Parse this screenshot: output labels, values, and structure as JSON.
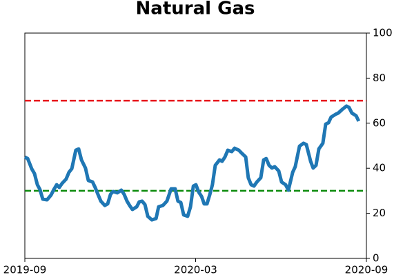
{
  "chart_data": {
    "type": "line",
    "title": "Natural Gas",
    "x": [
      0,
      0.1,
      0.24,
      0.34,
      0.44,
      0.53,
      0.63,
      0.78,
      0.92,
      1.02,
      1.12,
      1.21,
      1.31,
      1.45,
      1.55,
      1.65,
      1.79,
      1.89,
      1.99,
      2.13,
      2.23,
      2.38,
      2.47,
      2.57,
      2.67,
      2.81,
      2.91,
      3.01,
      3.1,
      3.25,
      3.39,
      3.49,
      3.59,
      3.68,
      3.78,
      3.93,
      4.02,
      4.12,
      4.22,
      4.32,
      4.46,
      4.61,
      4.7,
      4.85,
      4.99,
      5.14,
      5.28,
      5.38,
      5.48,
      5.58,
      5.72,
      5.82,
      5.92,
      6.01,
      6.11,
      6.21,
      6.3,
      6.4,
      6.5,
      6.59,
      6.69,
      6.84,
      6.93,
      7.03,
      7.13,
      7.27,
      7.37,
      7.52,
      7.61,
      7.76,
      7.85,
      7.95,
      8.05,
      8.15,
      8.29,
      8.39,
      8.48,
      8.58,
      8.68,
      8.78,
      8.92,
      9.02,
      9.16,
      9.26,
      9.41,
      9.5,
      9.65,
      9.79,
      9.89,
      10.04,
      10.13,
      10.23,
      10.33,
      10.47,
      10.57,
      10.67,
      10.76,
      10.91,
      11.01,
      11.15,
      11.3,
      11.39,
      11.49,
      11.64,
      11.73
    ],
    "series": [
      {
        "color": "#1f77b4",
        "values": [
          45.0,
          44.3,
          39.8,
          37.6,
          32.7,
          30.6,
          26.3,
          26.0,
          28.1,
          30.6,
          32.7,
          31.5,
          33.3,
          35.2,
          38.2,
          39.8,
          48.0,
          48.6,
          43.7,
          40.1,
          34.6,
          33.9,
          31.5,
          28.4,
          25.4,
          23.5,
          24.2,
          28.4,
          29.7,
          29.1,
          30.3,
          28.4,
          25.4,
          23.5,
          21.7,
          22.9,
          25.1,
          25.4,
          23.9,
          18.7,
          17.1,
          17.7,
          22.9,
          23.5,
          25.4,
          30.9,
          30.9,
          25.4,
          24.8,
          19.3,
          18.7,
          22.9,
          32.1,
          32.7,
          29.4,
          27.5,
          24.2,
          24.2,
          28.4,
          32.7,
          41.3,
          43.7,
          43.1,
          45.0,
          48.0,
          47.4,
          48.9,
          48.0,
          46.8,
          45.0,
          35.8,
          32.7,
          32.1,
          33.9,
          35.8,
          43.7,
          44.3,
          41.3,
          40.1,
          40.7,
          38.8,
          33.9,
          32.7,
          30.3,
          38.2,
          40.7,
          49.8,
          51.1,
          50.5,
          43.1,
          40.1,
          41.3,
          48.6,
          51.1,
          59.6,
          60.2,
          62.7,
          63.9,
          64.5,
          66.1,
          67.6,
          67.0,
          64.5,
          63.3,
          60.9
        ]
      }
    ],
    "hlines": [
      {
        "value": 70,
        "color": "#e8161b"
      },
      {
        "value": 30,
        "color": "#0a8a0a"
      }
    ],
    "xlim": [
      0,
      12
    ],
    "xticks": [
      {
        "value": 0,
        "label": "2019-09"
      },
      {
        "value": 6,
        "label": "2020-03"
      },
      {
        "value": 12,
        "label": "2020-09"
      }
    ],
    "ylim": [
      0,
      100
    ],
    "yticks": [
      0,
      20,
      40,
      60,
      80,
      100
    ],
    "y_axis_side": "right"
  }
}
